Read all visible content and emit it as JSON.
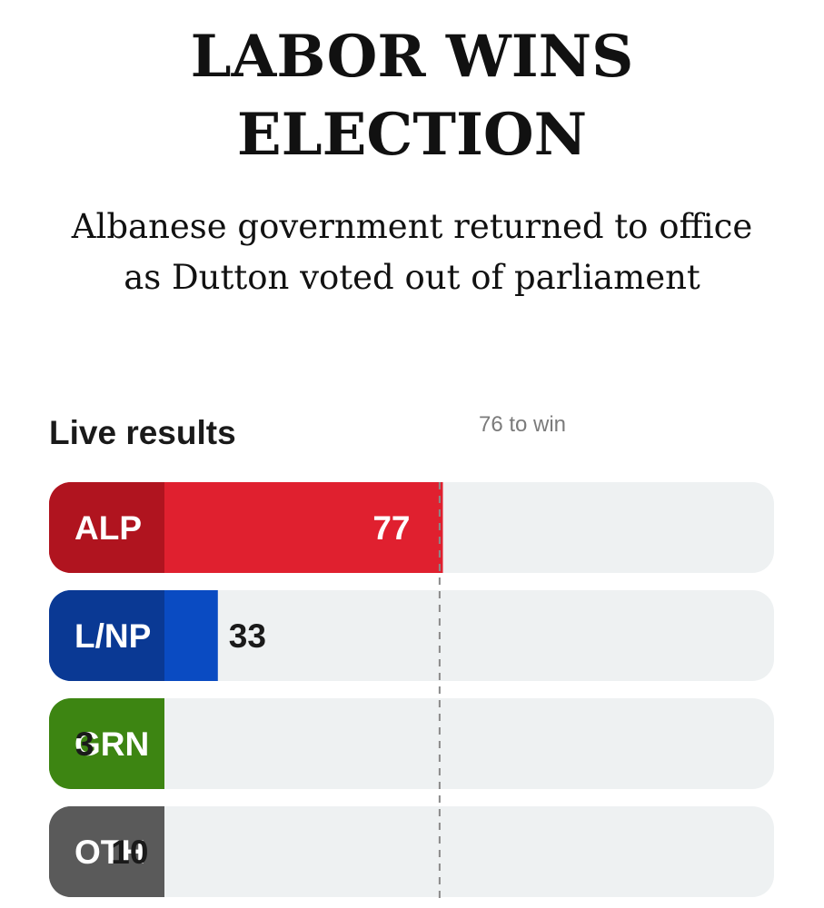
{
  "headline": {
    "line1": "LABOR WINS",
    "line2": "ELECTION"
  },
  "subhead": {
    "line1": "Albanese government returned to office",
    "line2": "as Dutton voted out of parliament"
  },
  "results_label": "Live results",
  "majority_label": "76 to win",
  "chart_data": {
    "type": "bar",
    "orientation": "horizontal",
    "categories": [
      "ALP",
      "L/NP",
      "GRN",
      "OTH"
    ],
    "values": [
      77,
      33,
      3,
      10
    ],
    "max": 151,
    "majority": 76,
    "colors": {
      "ALP": "#e0202f",
      "L/NP": "#0a4bc2",
      "GRN": "#4ea619",
      "OTH": "#6f6f6f"
    },
    "label_colors": {
      "ALP": "#b0141f",
      "L/NP": "#0a3994",
      "GRN": "#3d8512",
      "OTH": "#5a5a5a"
    },
    "track_color": "#eef1f2"
  }
}
